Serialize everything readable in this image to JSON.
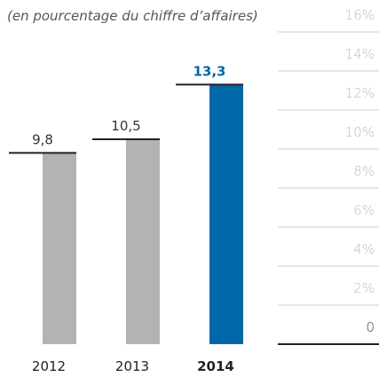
{
  "chart_data": {
    "type": "bar",
    "subtitle": "(en pourcentage du chiffre d’affaires)",
    "categories": [
      "2012",
      "2013",
      "2014"
    ],
    "values": [
      9.8,
      10.5,
      13.3
    ],
    "value_labels": [
      "9,8",
      "10,5",
      "13,3"
    ],
    "colors": [
      "#b1b3b4",
      "#b1b3b4",
      "#0067a9"
    ],
    "ylim": [
      0,
      16
    ],
    "yticks": [
      0,
      {
        "value": 2,
        "label": "2%"
      },
      {
        "value": 4,
        "label": "4%"
      },
      {
        "value": 6,
        "label": "6%"
      },
      {
        "value": 8,
        "label": "8%"
      },
      {
        "value": 10,
        "label": "10%"
      },
      {
        "value": 12,
        "label": "12%"
      },
      {
        "value": 14,
        "label": "14%"
      },
      {
        "value": 16,
        "label": "16%"
      }
    ],
    "grid": true
  }
}
